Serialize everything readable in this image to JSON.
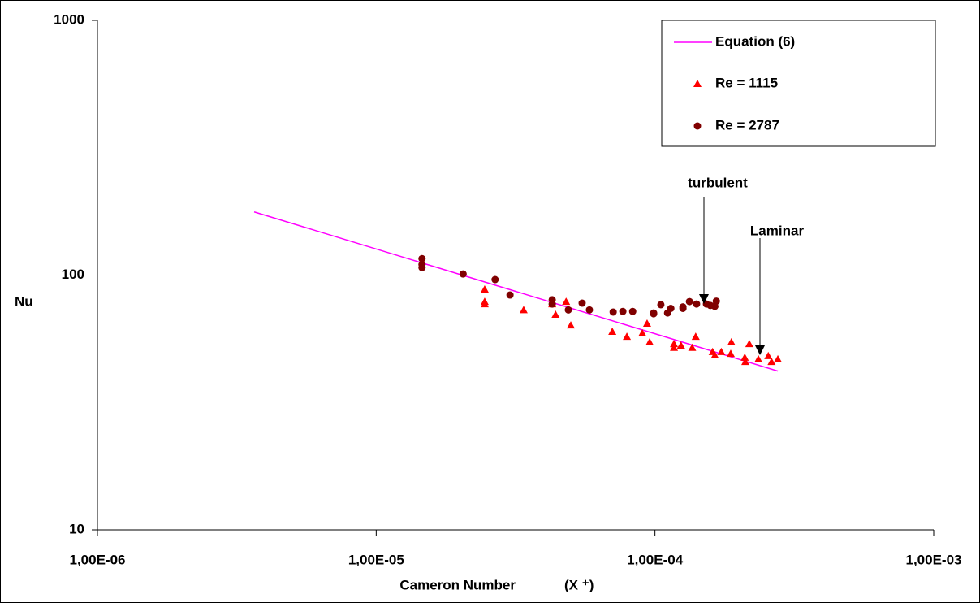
{
  "chart_data": {
    "type": "scatter",
    "xlabel": "Cameron Number",
    "xlabel_symbol": "(X ⁺)",
    "ylabel": "Nu",
    "log_x": true,
    "log_y": true,
    "xlim": [
      1e-06,
      0.001
    ],
    "ylim": [
      10,
      1000
    ],
    "xticks": [
      {
        "value": 1e-06,
        "label": "1,00E-06"
      },
      {
        "value": 1e-05,
        "label": "1,00E-05"
      },
      {
        "value": 0.0001,
        "label": "1,00E-04"
      },
      {
        "value": 0.001,
        "label": "1,00E-03"
      }
    ],
    "yticks": [
      10,
      100,
      1000
    ],
    "grid": false,
    "legend": "upper right",
    "annotations": [
      "turbulent",
      "Laminar"
    ],
    "series": [
      {
        "name": "Equation (6)",
        "type": "line",
        "color": "#ff00ff",
        "x": [
          3.65e-06,
          0.000276
        ],
        "values": [
          177,
          42
        ]
      },
      {
        "name": "Re = 1115",
        "type": "scatter",
        "marker": "triangle",
        "color": "#ff0000",
        "x": [
          2.45e-05,
          2.45e-05,
          2.45e-05,
          3.38e-05,
          4.28e-05,
          4.4e-05,
          4.8e-05,
          4.99e-05,
          7.03e-05,
          7.93e-05,
          9.01e-05,
          9.37e-05,
          9.57e-05,
          0.000117,
          0.000117,
          0.000124,
          0.000136,
          0.00014,
          0.000161,
          0.000164,
          0.000173,
          0.000187,
          0.000188,
          0.00021,
          0.000211,
          0.000218,
          0.000235,
          0.000255,
          0.000262,
          0.000276
        ],
        "values": [
          87.9,
          78.7,
          77,
          73,
          77,
          70,
          78.7,
          63.6,
          60,
          57.4,
          59.2,
          64.6,
          54.6,
          53.7,
          51.9,
          53,
          51.9,
          57.4,
          50,
          48.5,
          50,
          49.2,
          54.6,
          47.5,
          45.7,
          53.7,
          46.8,
          48.2,
          45.7,
          46.8
        ]
      },
      {
        "name": "Re = 2787",
        "type": "scatter",
        "marker": "circle",
        "color": "#800000",
        "x": [
          1.46e-05,
          1.46e-05,
          1.46e-05,
          2.05e-05,
          2.67e-05,
          3.02e-05,
          4.28e-05,
          4.28e-05,
          4.89e-05,
          5.48e-05,
          5.82e-05,
          7.08e-05,
          7.67e-05,
          8.32e-05,
          9.89e-05,
          9.89e-05,
          0.000105,
          0.000111,
          0.000114,
          0.000126,
          0.000126,
          0.000133,
          0.000141,
          0.000153,
          0.000158,
          0.000164,
          0.000166
        ],
        "values": [
          116,
          110,
          107,
          101,
          96,
          83.5,
          80,
          77,
          73,
          77.6,
          73,
          71.6,
          72,
          72,
          71,
          70.5,
          76.5,
          71,
          74,
          74,
          75,
          78.7,
          77,
          77,
          76,
          75.4,
          79
        ]
      }
    ]
  }
}
